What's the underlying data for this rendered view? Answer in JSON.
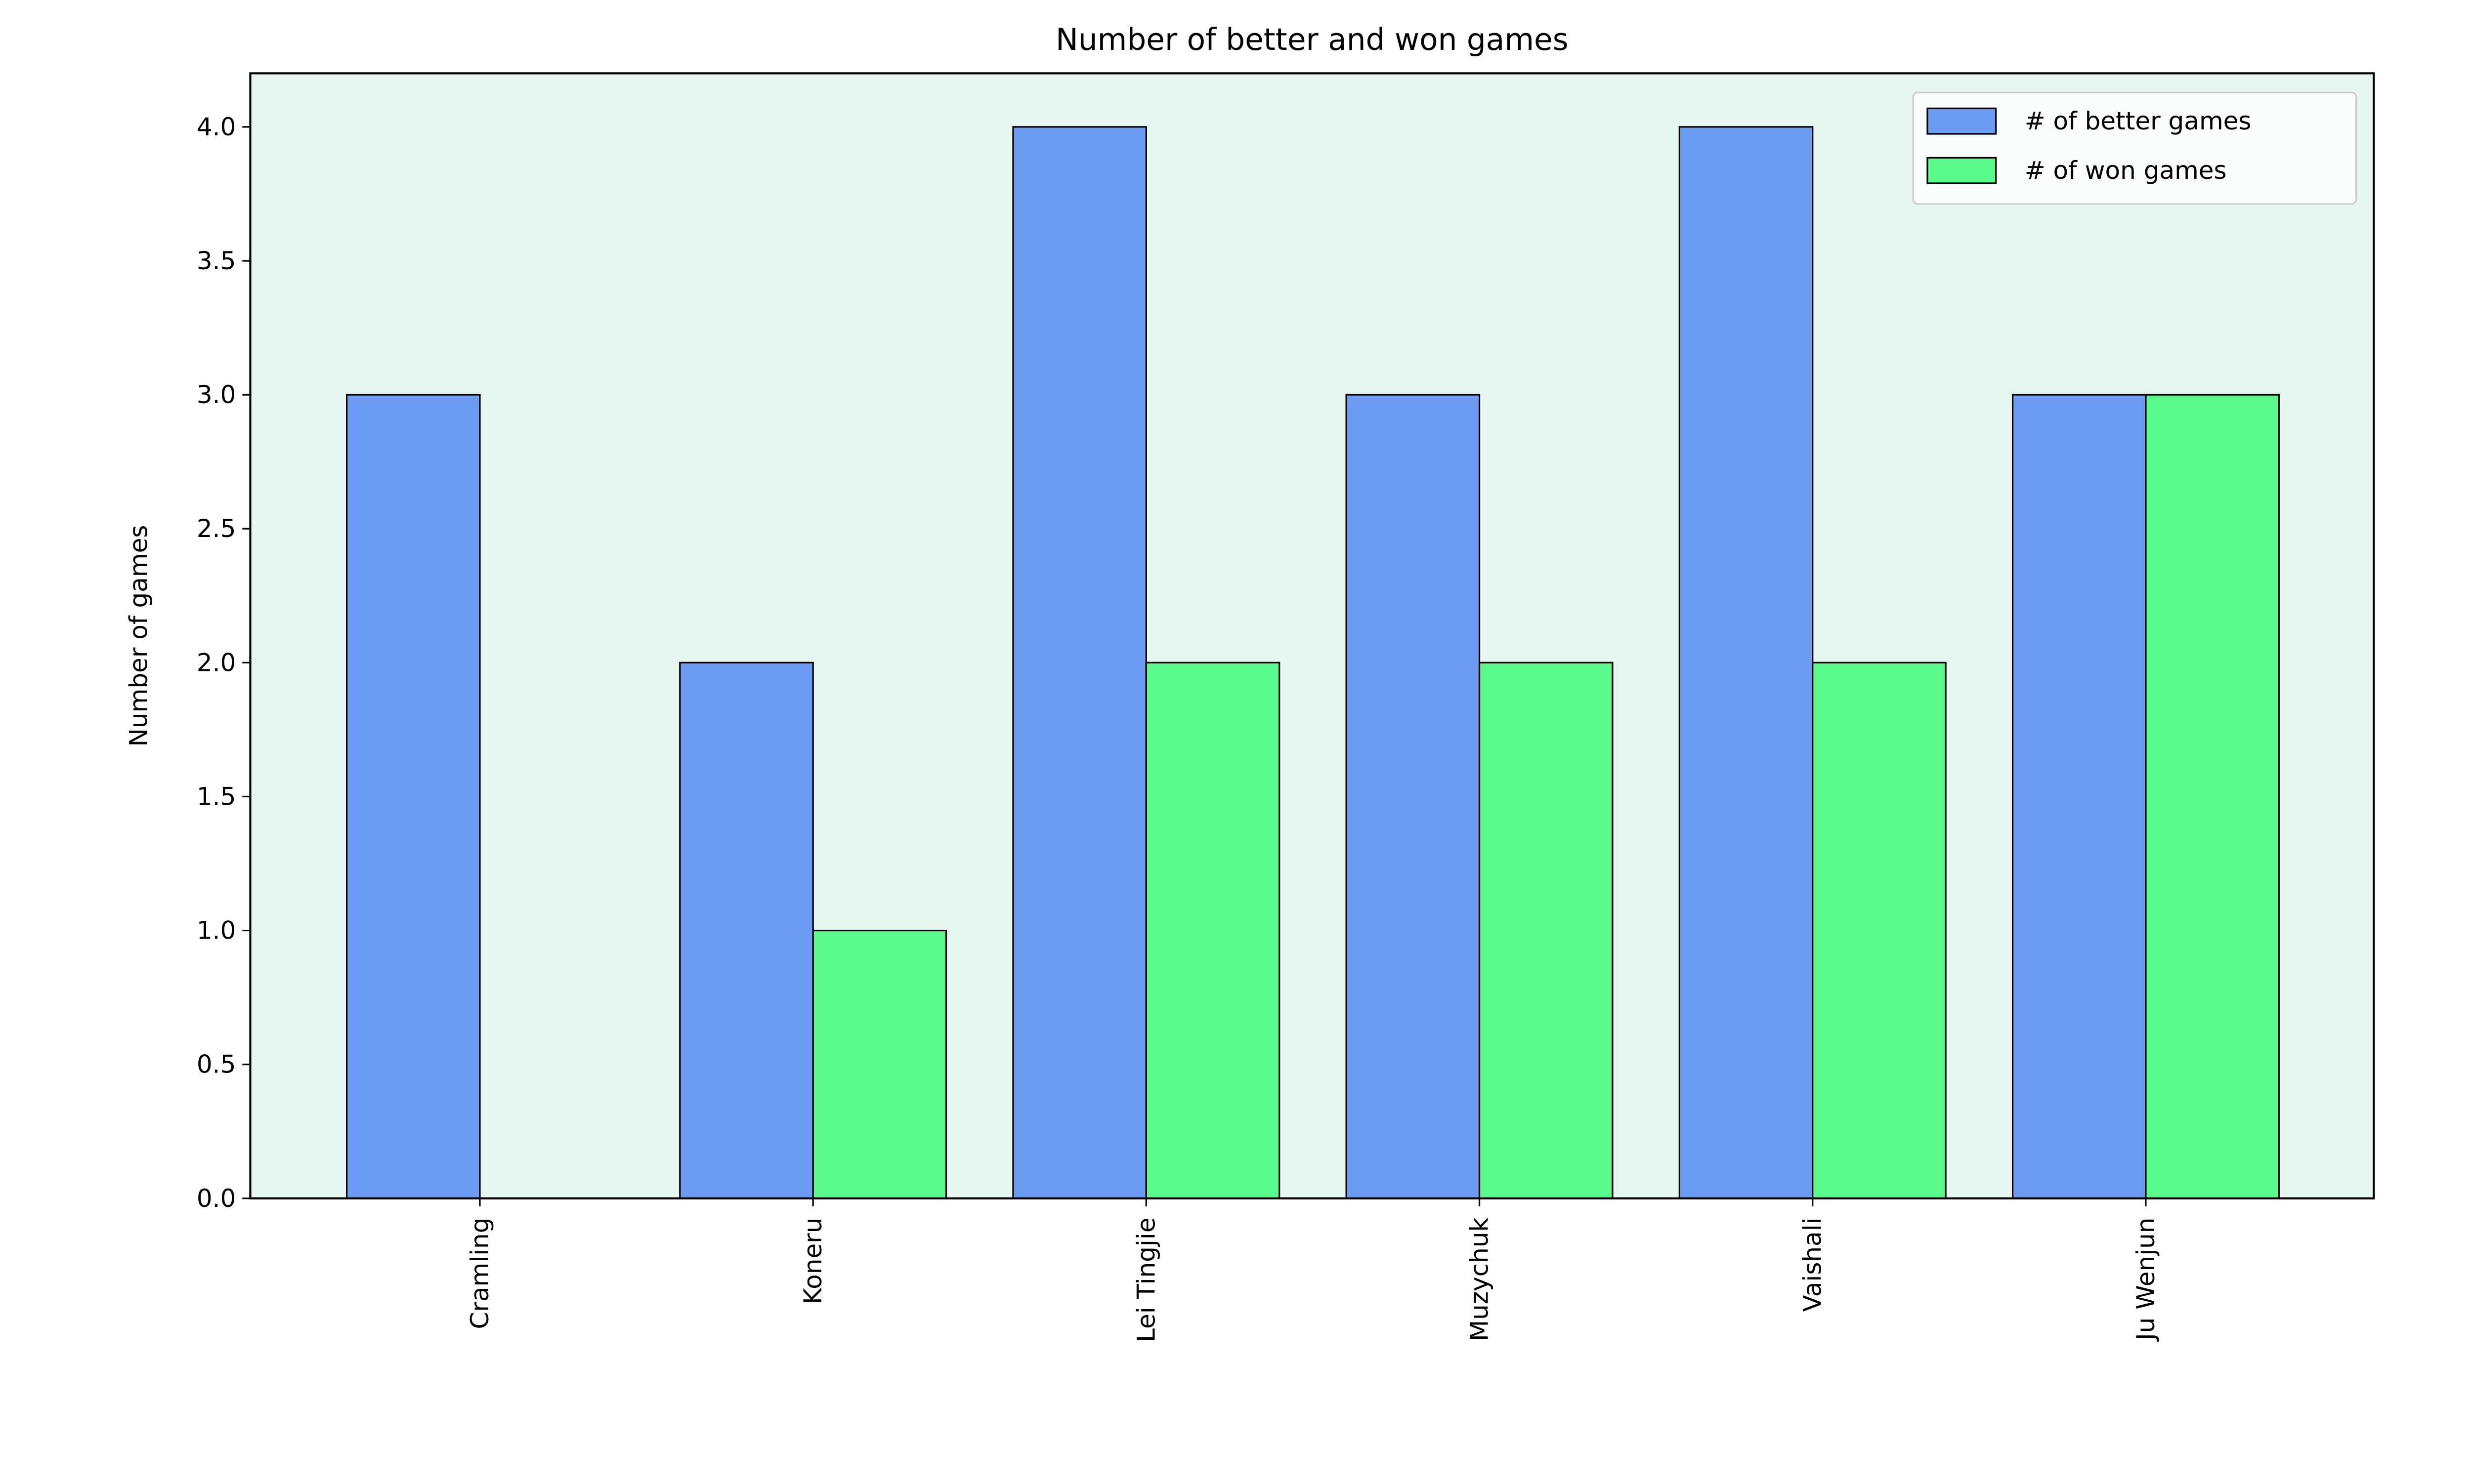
{
  "chart_data": {
    "type": "bar",
    "title": "Number of better and won games",
    "xlabel": "",
    "ylabel": "Number of games",
    "categories": [
      "Cramling",
      "Koneru",
      "Lei Tingjie",
      "Muzychuk",
      "Vaishali",
      "Ju Wenjun"
    ],
    "series": [
      {
        "name": "# of better games",
        "values": [
          3,
          2,
          4,
          3,
          4,
          3
        ],
        "color": "#6b9bf2"
      },
      {
        "name": "# of won games",
        "values": [
          0,
          1,
          2,
          2,
          2,
          3
        ],
        "color": "#5afb8c"
      }
    ],
    "ylim": [
      0,
      4.2
    ],
    "yticks": [
      "0.0",
      "0.5",
      "1.0",
      "1.5",
      "2.0",
      "2.5",
      "3.0",
      "3.5",
      "4.0"
    ],
    "grid": false,
    "legend_position": "top-right",
    "plot_background": "#e6f6f0",
    "edge_color": "#000000"
  }
}
